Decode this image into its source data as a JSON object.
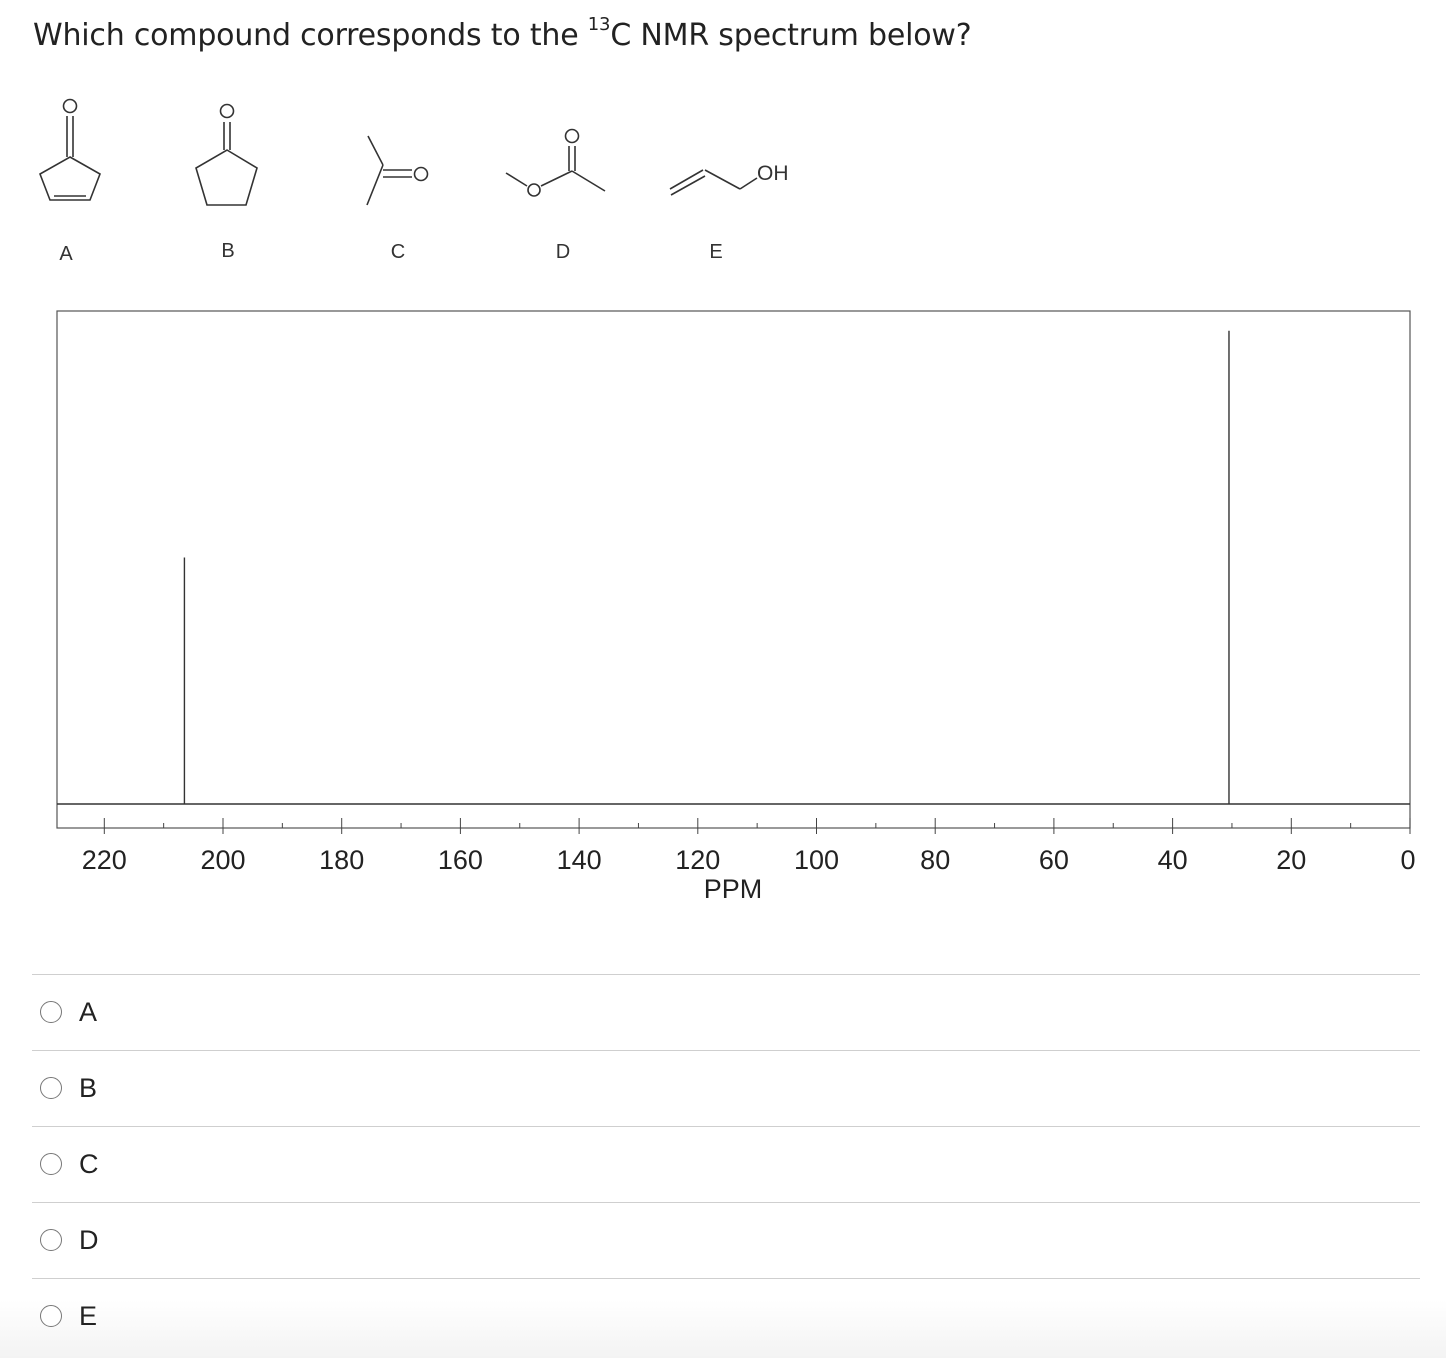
{
  "question": {
    "prefix": "Which compound corresponds to the ",
    "isotope": "13",
    "suffix": "C NMR spectrum below?"
  },
  "structures": [
    {
      "label": "A",
      "icon": "cyclopentenone-structure-icon"
    },
    {
      "label": "B",
      "icon": "cyclopentanone-structure-icon"
    },
    {
      "label": "C",
      "icon": "acetone-structure-icon"
    },
    {
      "label": "D",
      "icon": "methyl-acetate-structure-icon"
    },
    {
      "label": "E",
      "icon": "allyl-alcohol-structure-icon",
      "atom_text": "OH"
    }
  ],
  "chart_data": {
    "type": "stick",
    "xlabel": "PPM",
    "xlim": [
      0,
      228
    ],
    "x_reversed": true,
    "x_ticks": [
      220,
      200,
      180,
      160,
      140,
      120,
      100,
      80,
      60,
      40,
      20,
      0
    ],
    "peaks": [
      {
        "ppm": 206.5,
        "relative_intensity": 0.5
      },
      {
        "ppm": 30.5,
        "relative_intensity": 0.96
      }
    ]
  },
  "options": [
    "A",
    "B",
    "C",
    "D",
    "E"
  ]
}
